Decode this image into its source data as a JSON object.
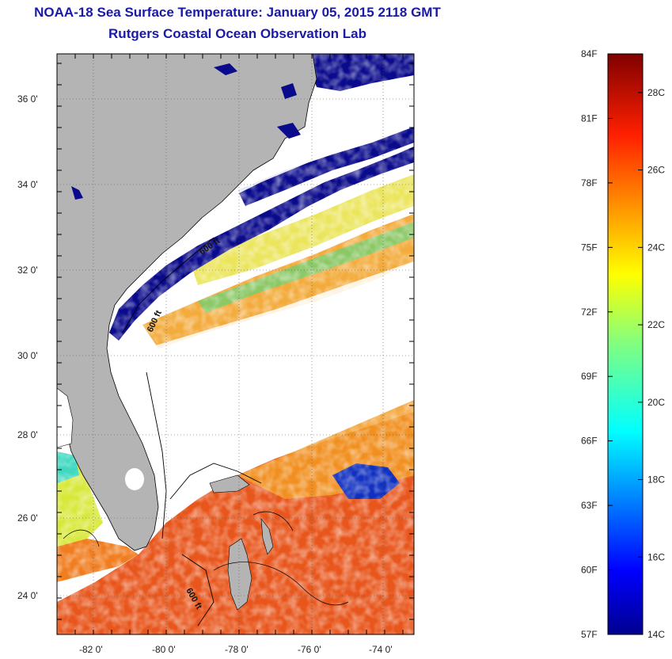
{
  "header": {
    "title": "NOAA-18 Sea Surface Temperature:  January 05, 2015 2118 GMT",
    "subtitle": "Rutgers Coastal Ocean Observation Lab"
  },
  "map": {
    "lat_labels": [
      "36 0'",
      "34 0'",
      "32 0'",
      "30 0'",
      "28 0'",
      "26 0'",
      "24 0'"
    ],
    "lon_labels": [
      "-82 0'",
      "-80 0'",
      "-78 0'",
      "-76 0'",
      "-74 0'"
    ],
    "contour_labels": [
      "600 ft",
      "600 ft",
      "600 ft"
    ],
    "colors": {
      "land": "#b4b4b4",
      "cloud": "#ffffff",
      "cold": "#0a0a8c",
      "warm": "#e8501a"
    }
  },
  "colorbar": {
    "fahrenheit": [
      "84F",
      "81F",
      "78F",
      "75F",
      "72F",
      "69F",
      "66F",
      "63F",
      "60F",
      "57F"
    ],
    "celsius": [
      "28C",
      "26C",
      "24C",
      "22C",
      "20C",
      "18C",
      "16C",
      "14C"
    ],
    "range_f": [
      57,
      84
    ],
    "range_c": [
      14,
      29
    ]
  }
}
